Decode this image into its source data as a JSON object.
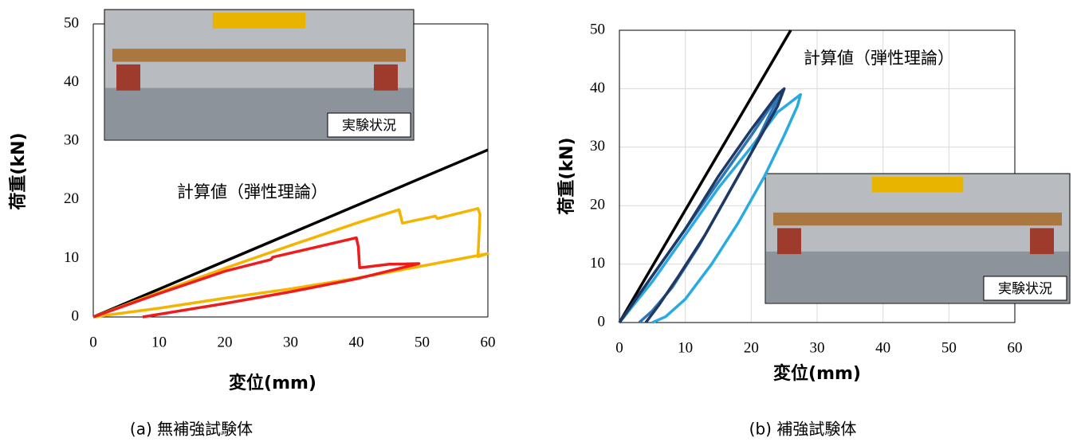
{
  "chart_data": [
    {
      "type": "line",
      "caption": "(a)  無補強試験体",
      "xlabel": "変位(mm)",
      "ylabel": "荷重(kN)",
      "annotation": "計算値（弾性理論）",
      "photo_label": "実験状況",
      "grid": false,
      "xlim": [
        0,
        60
      ],
      "ylim": [
        0,
        50
      ],
      "xticks": [
        0,
        10,
        20,
        30,
        40,
        50,
        60
      ],
      "yticks": [
        0,
        10,
        20,
        30,
        40,
        50
      ],
      "series": [
        {
          "color": "#000000",
          "x": [
            0,
            60
          ],
          "values": [
            0,
            28.5
          ]
        },
        {
          "color": "#f5b400",
          "x": [
            0,
            10,
            20,
            30,
            40,
            46.5,
            47,
            52,
            52.3,
            58.5,
            58.8,
            58.5,
            60,
            50,
            40,
            30,
            20,
            10,
            0
          ],
          "values": [
            0,
            4.2,
            8.3,
            12.2,
            16,
            18.3,
            16,
            17.2,
            16.8,
            18.5,
            17.5,
            10.3,
            10.8,
            8.7,
            6.6,
            4.8,
            3.2,
            1.5,
            0
          ]
        },
        {
          "color": "#ee1c1c",
          "x": [
            0,
            10,
            20,
            27,
            27.3,
            35,
            40,
            40.3,
            40.5,
            45,
            49.5,
            40,
            30,
            20,
            7.5
          ],
          "values": [
            0,
            4,
            7.8,
            9.8,
            10.2,
            12.2,
            13.5,
            12,
            8.4,
            9,
            9.1,
            6.5,
            4.3,
            2.3,
            0
          ]
        }
      ]
    },
    {
      "type": "line",
      "caption": "(b)  補強試験体",
      "xlabel": "変位(mm)",
      "ylabel": "荷重(kN)",
      "annotation": "計算値（弾性理論）",
      "photo_label": "実験状況",
      "grid": true,
      "xlim": [
        0,
        60
      ],
      "ylim": [
        0,
        50
      ],
      "xticks": [
        0,
        10,
        20,
        30,
        40,
        50,
        60
      ],
      "yticks": [
        0,
        10,
        20,
        30,
        40,
        50
      ],
      "series": [
        {
          "color": "#000000",
          "x": [
            0,
            26
          ],
          "values": [
            0,
            50
          ]
        },
        {
          "color": "#29abe2",
          "x": [
            0,
            5,
            10,
            15,
            20,
            24,
            27.5,
            27,
            25,
            22,
            18,
            14,
            10,
            7,
            5
          ],
          "values": [
            0,
            7,
            15,
            23,
            30,
            36,
            39,
            37,
            32,
            25,
            17,
            10,
            4,
            1,
            0
          ]
        },
        {
          "color": "#2e75b6",
          "x": [
            0,
            5,
            10,
            15,
            20,
            23,
            24.5,
            23,
            20,
            16,
            12,
            8,
            5,
            3
          ],
          "values": [
            0,
            8,
            16,
            24,
            32,
            37,
            39,
            36,
            29,
            21,
            13,
            6,
            2,
            0
          ]
        },
        {
          "color": "#1f3864",
          "x": [
            0,
            5,
            10,
            15,
            20,
            24,
            25,
            24,
            21,
            17,
            13,
            9,
            6,
            4
          ],
          "values": [
            0,
            8,
            16,
            25,
            33,
            39,
            40,
            37,
            31,
            23,
            15,
            8,
            3,
            0
          ]
        }
      ]
    }
  ]
}
